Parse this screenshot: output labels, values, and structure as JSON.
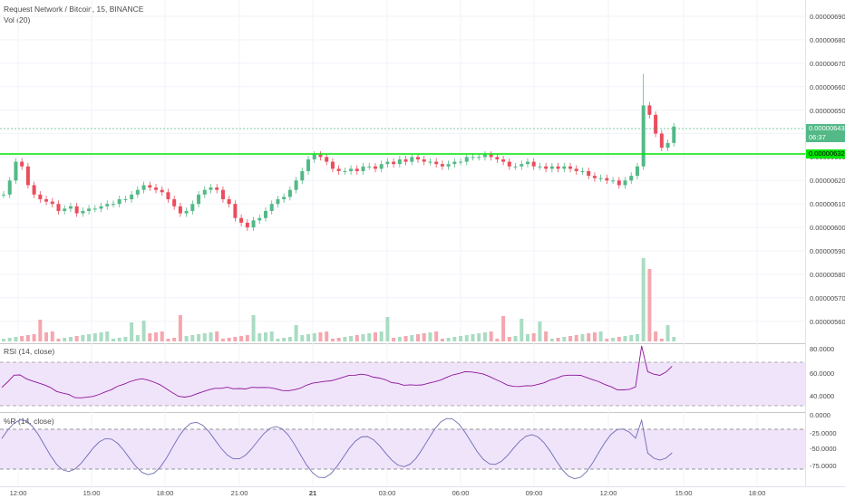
{
  "header": {
    "title": "Request Network / Bitcoin, 15, BINANCE",
    "volume_label": "Vol (20)"
  },
  "price_axis": {
    "labels": [
      "0.00000690",
      "0.00000680",
      "0.00000670",
      "0.00000660",
      "0.00000650",
      "0.00000640",
      "0.00000630",
      "0.00000620",
      "0.00000610",
      "0.00000600",
      "0.00000590",
      "0.00000580",
      "0.00000570",
      "0.00000560"
    ],
    "current_price": "0.00000643",
    "countdown": "06:37",
    "line_price": "0.00000632"
  },
  "rsi": {
    "title": "RSI (14, close)",
    "labels": [
      "80.0000",
      "60.0000",
      "40.0000"
    ]
  },
  "williams_r": {
    "title": "%R (14, close)",
    "labels": [
      "0.0000",
      "-25.0000",
      "-50.0000",
      "-75.0000"
    ]
  },
  "time_axis": {
    "labels": [
      "12:00",
      "15:00",
      "18:00",
      "21:00",
      "21",
      "03:00",
      "06:00",
      "09:00",
      "12:00",
      "15:00",
      "18:00"
    ]
  },
  "colors": {
    "up": "#53b987",
    "down": "#eb4d5c",
    "line": "#00e600",
    "rsi_line": "#8e1599",
    "wr_line": "#6c6cb4",
    "band": "#f0e4fb"
  }
}
